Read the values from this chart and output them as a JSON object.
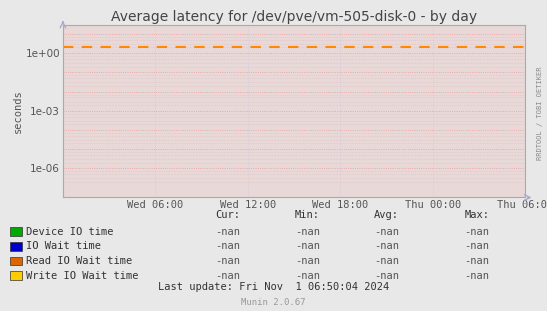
{
  "title": "Average latency for /dev/pve/vm-505-disk-0 - by day",
  "ylabel": "seconds",
  "bg_color": "#e8e8e8",
  "plot_bg_color": "#e8d8d8",
  "grid_major_color": "#ee9999",
  "grid_minor_color": "#ddbbbb",
  "grid_vert_color": "#ccccdd",
  "border_color": "#aaaaaa",
  "xticklabels": [
    "Wed 06:00",
    "Wed 12:00",
    "Wed 18:00",
    "Thu 00:00",
    "Thu 06:00"
  ],
  "ylim_min": 3e-08,
  "ylim_max": 30.0,
  "ytick_vals": [
    1e-06,
    0.001,
    1.0
  ],
  "ytick_labels": [
    "1e-06",
    "1e-03",
    "1e+00"
  ],
  "dashed_line_y": 2.0,
  "dashed_line_color": "#ff8800",
  "right_label": "RRDTOOL / TOBI OETIKER",
  "legend_items": [
    {
      "label": "Device IO time",
      "color": "#00aa00"
    },
    {
      "label": "IO Wait time",
      "color": "#0000cc"
    },
    {
      "label": "Read IO Wait time",
      "color": "#dd6600"
    },
    {
      "label": "Write IO Wait time",
      "color": "#ffcc00"
    }
  ],
  "table_headers": [
    "Cur:",
    "Min:",
    "Avg:",
    "Max:"
  ],
  "table_values": [
    "-nan",
    "-nan",
    "-nan",
    "-nan"
  ],
  "footer_text": "Last update: Fri Nov  1 06:50:04 2024",
  "munin_text": "Munin 2.0.67",
  "title_fontsize": 10,
  "axis_fontsize": 7.5,
  "legend_fontsize": 7.5,
  "table_fontsize": 7.5
}
